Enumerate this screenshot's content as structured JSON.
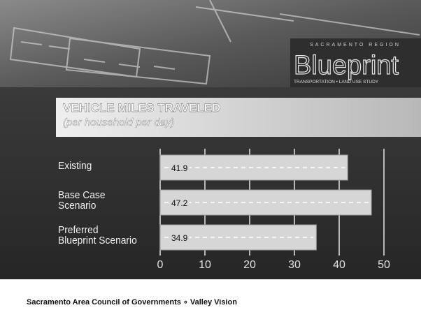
{
  "banner": {
    "region": "SACRAMENTO REGION",
    "logo": "Blueprint",
    "tagline": "TRANSPORTATION • LAND USE STUDY"
  },
  "chart_data": {
    "type": "bar",
    "orientation": "horizontal",
    "title": "VEHICLE MILES TRAVELED",
    "subtitle": "(per household per day)",
    "categories": [
      "Existing",
      "Base Case\nScenario",
      "Preferred\nBlueprint Scenario"
    ],
    "values": [
      41.9,
      47.2,
      34.9
    ],
    "color": "#d6d6d6",
    "xlim": [
      0,
      50
    ],
    "xticks": [
      0,
      10,
      20,
      30,
      40,
      50
    ],
    "grid": true
  },
  "footer": "Sacramento Area Council of Governments ∘ Valley Vision"
}
